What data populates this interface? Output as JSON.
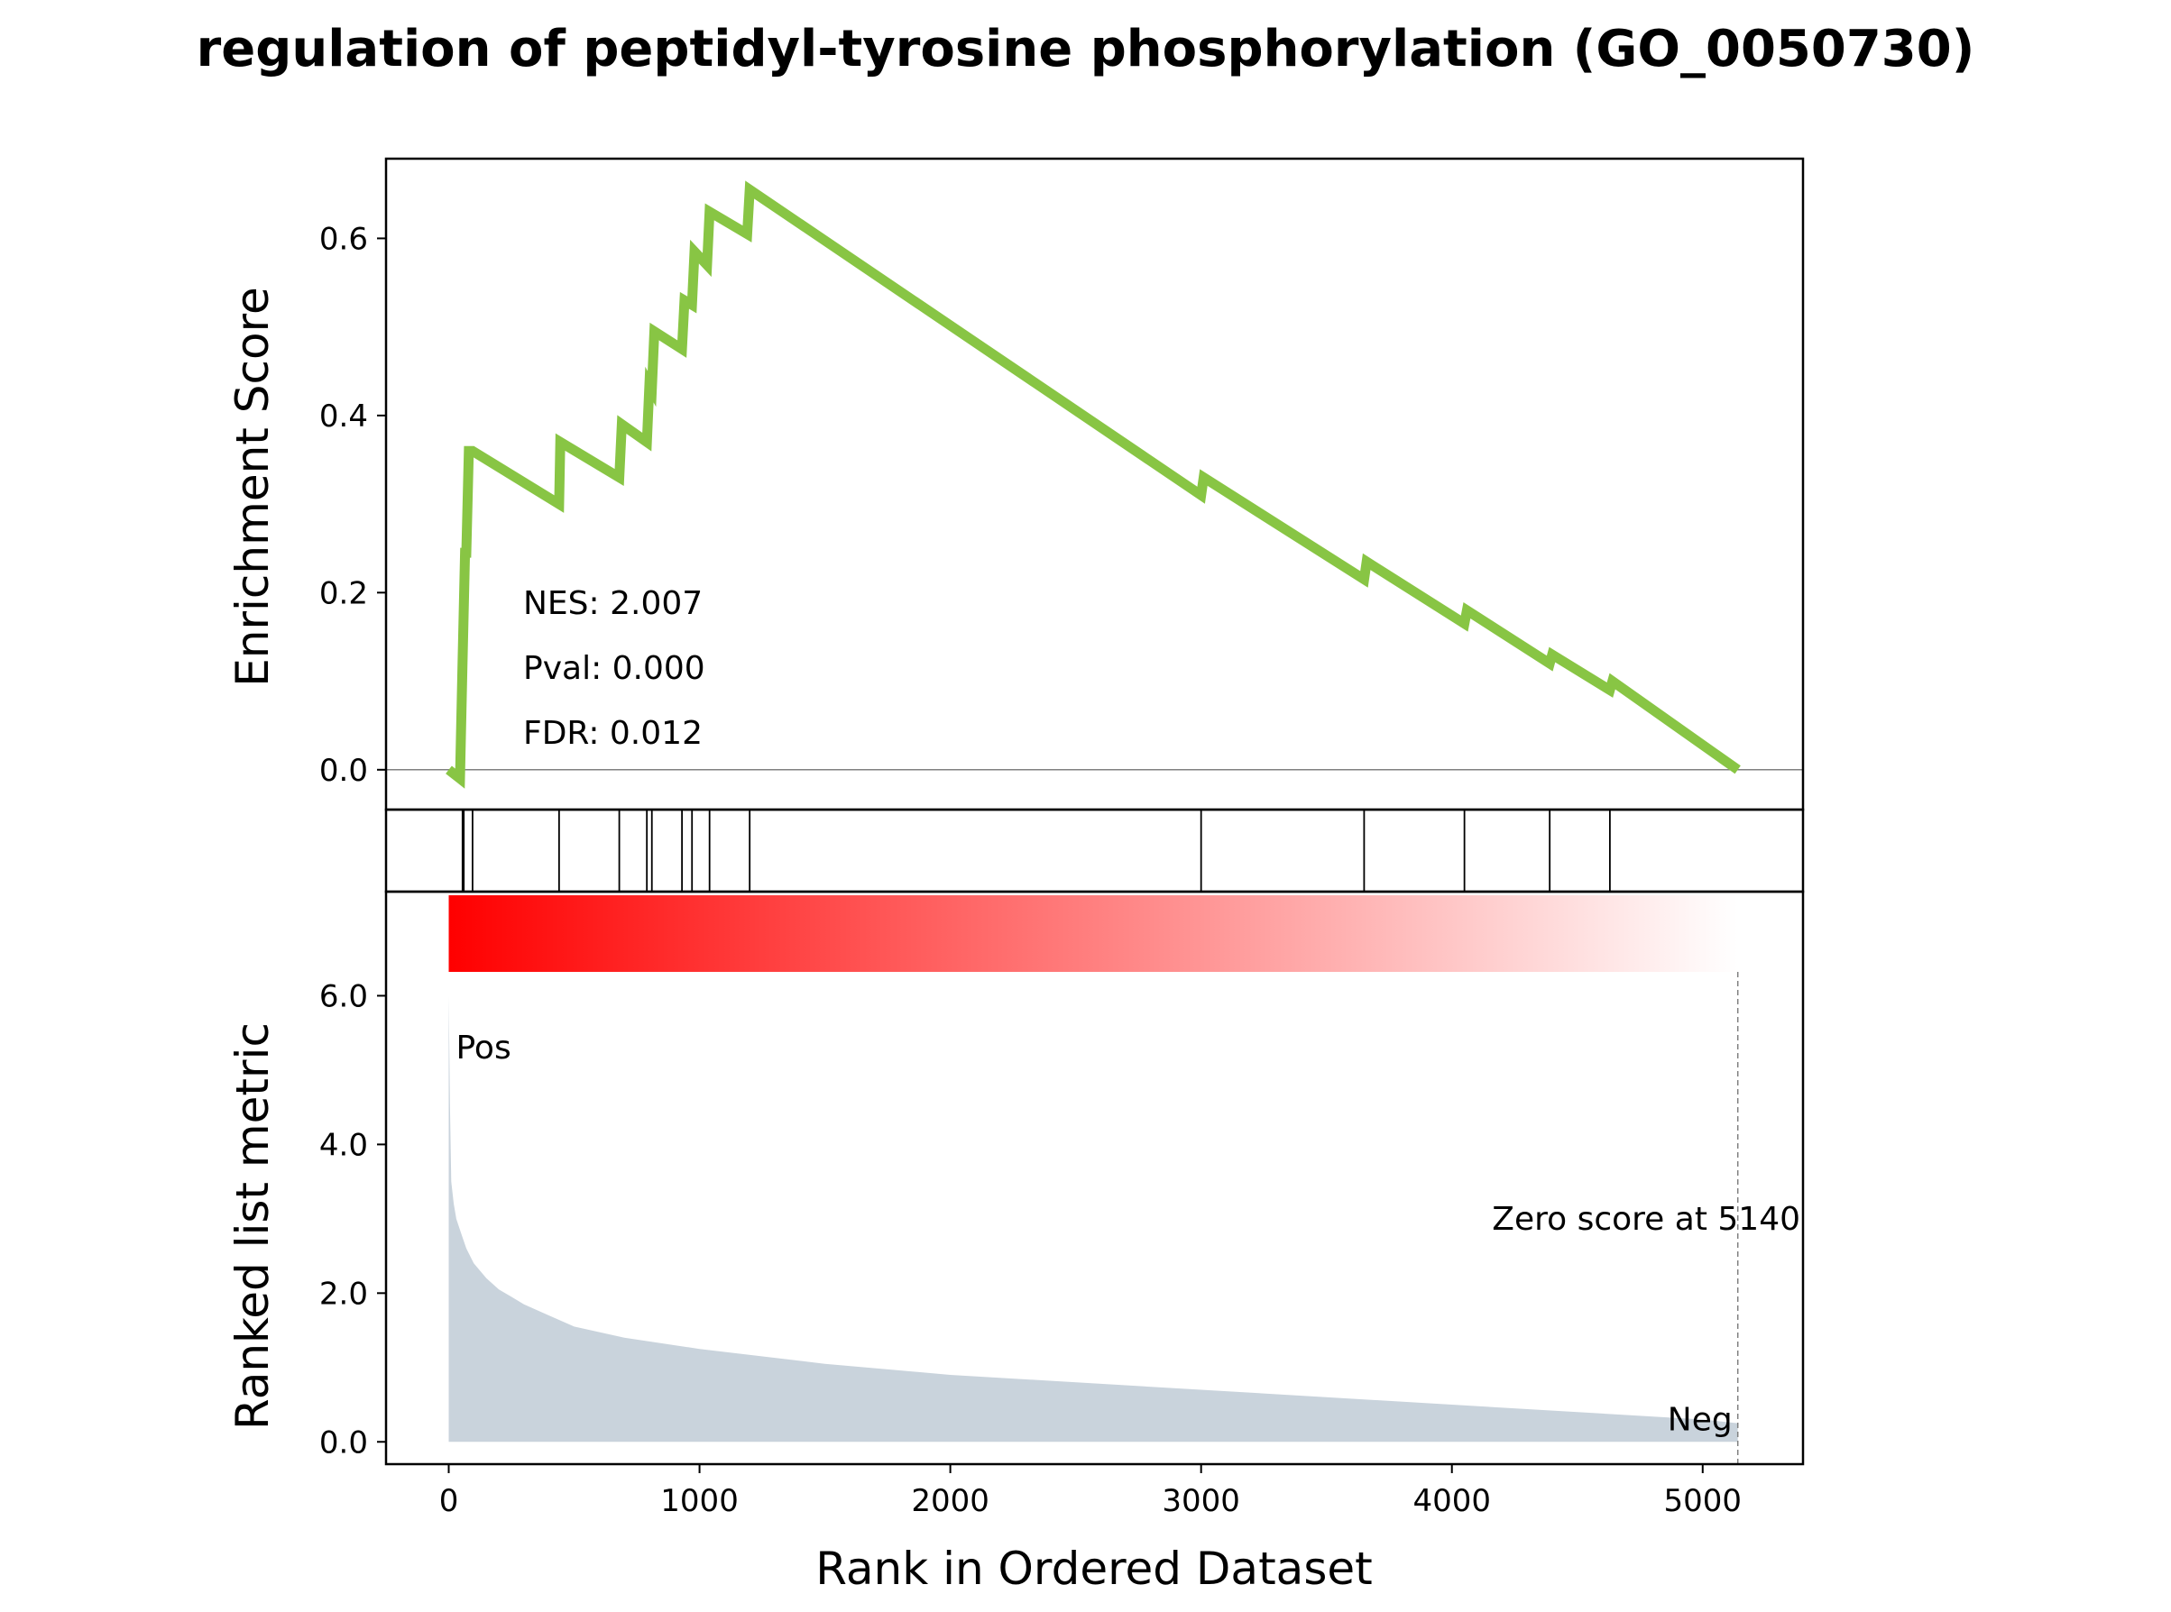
{
  "title": "regulation of peptidyl-tyrosine phosphorylation (GO_0050730)",
  "chart_data": [
    {
      "type": "line",
      "panel": "enrichment-score",
      "ylabel": "Enrichment Score",
      "xlim": [
        -250,
        5400
      ],
      "ylim": [
        -0.045,
        0.69
      ],
      "yticks": [
        0.0,
        0.2,
        0.4,
        0.6
      ],
      "ytick_labels": [
        "0.0",
        "0.2",
        "0.4",
        "0.6"
      ],
      "grid": false,
      "zero_line": true,
      "line_color": "#88c544",
      "series": [
        {
          "x": [
            0,
            45,
            55,
            55,
            65,
            70,
            80,
            95,
            440,
            445,
            680,
            690,
            790,
            800,
            810,
            820,
            930,
            940,
            970,
            980,
            1030,
            1040,
            1190,
            1200,
            3000,
            3010,
            3650,
            3660,
            4050,
            4060,
            4390,
            4400,
            4630,
            4640,
            5140
          ],
          "y": [
            0.0,
            -0.01,
            0.12,
            0.12,
            0.245,
            0.245,
            0.36,
            0.36,
            0.3,
            0.37,
            0.33,
            0.39,
            0.37,
            0.435,
            0.43,
            0.495,
            0.475,
            0.53,
            0.525,
            0.585,
            0.57,
            0.63,
            0.605,
            0.655,
            0.31,
            0.33,
            0.215,
            0.235,
            0.165,
            0.18,
            0.12,
            0.13,
            0.09,
            0.1,
            0.0
          ]
        }
      ],
      "annotations": [
        "NES: 2.007",
        "Pval: 0.000",
        "FDR: 0.012"
      ]
    },
    {
      "type": "bar",
      "panel": "hit-positions",
      "hits": [
        55,
        60,
        95,
        440,
        680,
        790,
        810,
        930,
        970,
        1040,
        1200,
        3000,
        3650,
        4050,
        4390,
        4630
      ]
    },
    {
      "type": "area",
      "panel": "ranked-list-metric",
      "xlabel": "Rank in Ordered Dataset",
      "ylabel": "Ranked list metric",
      "xlim": [
        -250,
        5400
      ],
      "ylim": [
        -0.3,
        7.4
      ],
      "xticks": [
        0,
        1000,
        2000,
        3000,
        4000,
        5000
      ],
      "xtick_labels": [
        "0",
        "1000",
        "2000",
        "3000",
        "4000",
        "5000"
      ],
      "yticks": [
        0.0,
        2.0,
        4.0,
        6.0
      ],
      "ytick_labels": [
        "0.0",
        "2.0",
        "4.0",
        "6.0"
      ],
      "fill_color": "#c9d3dc",
      "series": [
        {
          "x": [
            0,
            5,
            10,
            20,
            30,
            50,
            70,
            100,
            150,
            200,
            250,
            300,
            400,
            500,
            700,
            1000,
            1500,
            2000,
            3000,
            4000,
            5000,
            5140
          ],
          "y": [
            6.0,
            4.5,
            3.5,
            3.2,
            3.0,
            2.8,
            2.6,
            2.4,
            2.2,
            2.05,
            1.95,
            1.85,
            1.7,
            1.55,
            1.4,
            1.25,
            1.05,
            0.9,
            0.7,
            0.5,
            0.3,
            0.25
          ]
        }
      ],
      "gradient_bar": {
        "start_color": "#ff0000",
        "end_color": "#ffffff",
        "x_start": 0,
        "x_end": 5140
      },
      "pos_label": {
        "text": "Pos",
        "color": "#ff0000"
      },
      "neg_label": {
        "text": "Neg",
        "color": "#0000ff"
      },
      "zero_score": {
        "text": "Zero score at 5140",
        "x": 5140
      }
    }
  ]
}
